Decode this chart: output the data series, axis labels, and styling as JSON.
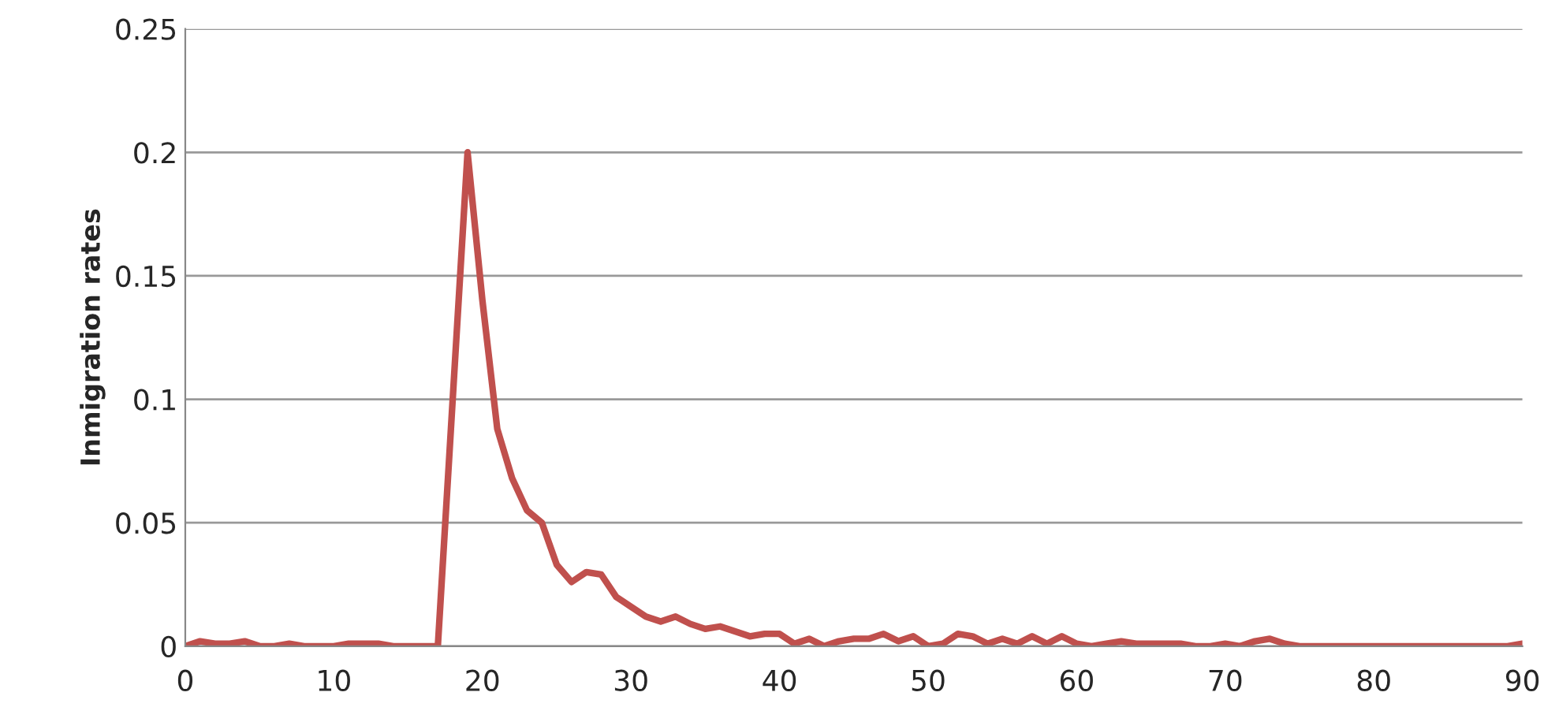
{
  "chart_data": {
    "type": "line",
    "ylabel": "Inmigration rates",
    "x": [
      0,
      1,
      2,
      3,
      4,
      5,
      6,
      7,
      8,
      9,
      10,
      11,
      12,
      13,
      14,
      15,
      16,
      17,
      18,
      19,
      20,
      21,
      22,
      23,
      24,
      25,
      26,
      27,
      28,
      29,
      30,
      31,
      32,
      33,
      34,
      35,
      36,
      37,
      38,
      39,
      40,
      41,
      42,
      43,
      44,
      45,
      46,
      47,
      48,
      49,
      50,
      51,
      52,
      53,
      54,
      55,
      56,
      57,
      58,
      59,
      60,
      61,
      62,
      63,
      64,
      65,
      66,
      67,
      68,
      69,
      70,
      71,
      72,
      73,
      74,
      75,
      76,
      77,
      78,
      79,
      80,
      81,
      82,
      83,
      84,
      85,
      86,
      87,
      88,
      89,
      90
    ],
    "series": [
      {
        "color": "#c0504d",
        "values": [
          0,
          0.002,
          0.001,
          0.001,
          0.002,
          0,
          0,
          0.001,
          0,
          0,
          0,
          0.001,
          0.001,
          0.001,
          0,
          0,
          0,
          0,
          0.1,
          0.2,
          0.14,
          0.088,
          0.068,
          0.055,
          0.05,
          0.033,
          0.026,
          0.03,
          0.029,
          0.02,
          0.016,
          0.012,
          0.01,
          0.012,
          0.009,
          0.007,
          0.008,
          0.006,
          0.004,
          0.005,
          0.005,
          0.001,
          0.003,
          0,
          0.002,
          0.003,
          0.003,
          0.005,
          0.002,
          0.004,
          0,
          0.001,
          0.005,
          0.004,
          0.001,
          0.003,
          0.001,
          0.004,
          0.001,
          0.004,
          0.001,
          0,
          0.001,
          0.002,
          0.001,
          0.001,
          0.001,
          0.001,
          0,
          0,
          0.001,
          0,
          0.002,
          0.003,
          0.001,
          0,
          0,
          0,
          0,
          0,
          0,
          0,
          0,
          0,
          0,
          0,
          0,
          0,
          0,
          0,
          0.001
        ]
      }
    ],
    "xlim": [
      0,
      90
    ],
    "xticks": [
      0,
      10,
      20,
      30,
      40,
      50,
      60,
      70,
      80,
      90
    ],
    "ylim": [
      0,
      0.25
    ],
    "yticks": [
      0,
      0.05,
      0.1,
      0.15,
      0.2,
      0.25
    ],
    "grid": "y",
    "marker": "none",
    "line_style": "solid"
  }
}
